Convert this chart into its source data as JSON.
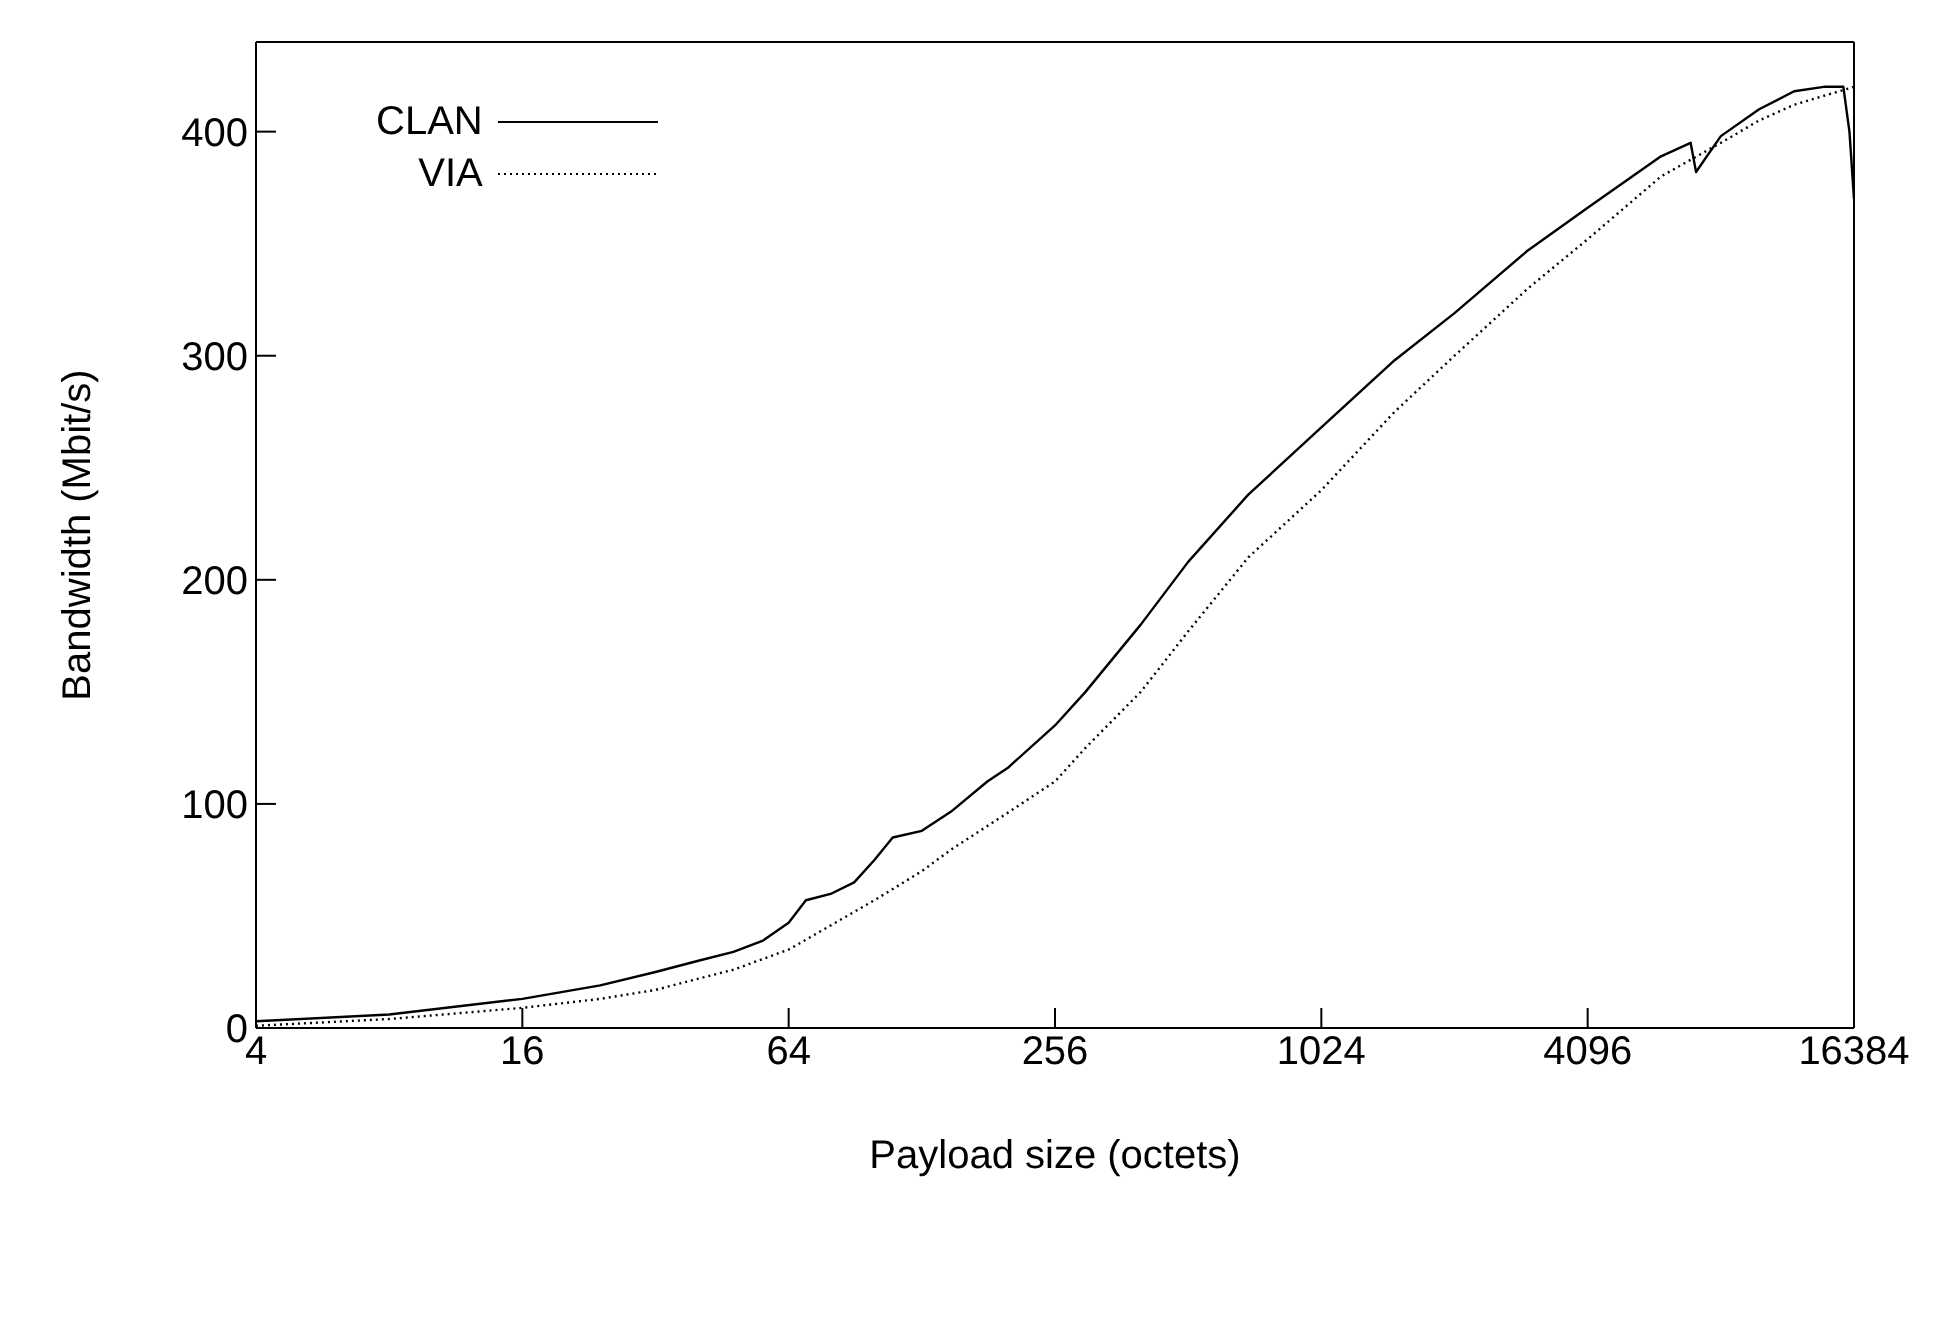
{
  "chart_data": {
    "type": "line",
    "xlabel": "Payload size (octets)",
    "ylabel": "Bandwidth (Mbit/s)",
    "log": "x",
    "xlim": [
      4,
      16384
    ],
    "xticks": [
      4,
      16,
      64,
      256,
      1024,
      4096,
      16384
    ],
    "ylim": [
      0,
      440
    ],
    "yticks": [
      0,
      100,
      200,
      300,
      400
    ],
    "legend": "top left",
    "marker": "none",
    "series": [
      {
        "name": "CLAN",
        "color": "#000000",
        "line_style": "solid",
        "x": [
          4,
          8,
          16,
          24,
          32,
          40,
          48,
          56,
          64,
          70,
          80,
          90,
          100,
          110,
          128,
          150,
          180,
          200,
          256,
          300,
          400,
          512,
          700,
          1024,
          1500,
          2048,
          3000,
          4096,
          6000,
          7000,
          7200,
          8192,
          10000,
          12000,
          14000,
          15500,
          16000,
          16384
        ],
        "values": [
          3,
          6,
          13,
          19,
          25,
          30,
          34,
          39,
          47,
          57,
          60,
          65,
          75,
          85,
          88,
          97,
          110,
          116,
          135,
          150,
          180,
          208,
          238,
          268,
          298,
          319,
          347,
          366,
          389,
          395,
          382,
          398,
          410,
          418,
          420,
          420,
          400,
          370
        ]
      },
      {
        "name": "VIA",
        "color": "#000000",
        "line_style": "dotted",
        "x": [
          4,
          8,
          16,
          24,
          32,
          40,
          48,
          64,
          80,
          100,
          128,
          150,
          200,
          256,
          300,
          400,
          512,
          700,
          1024,
          1500,
          2048,
          3000,
          4096,
          6000,
          8192,
          10000,
          12000,
          16384
        ],
        "values": [
          1,
          4,
          9,
          13,
          17,
          22,
          26,
          35,
          46,
          57,
          70,
          80,
          96,
          110,
          125,
          150,
          177,
          210,
          240,
          275,
          300,
          330,
          352,
          380,
          395,
          405,
          412,
          420
        ]
      }
    ]
  }
}
